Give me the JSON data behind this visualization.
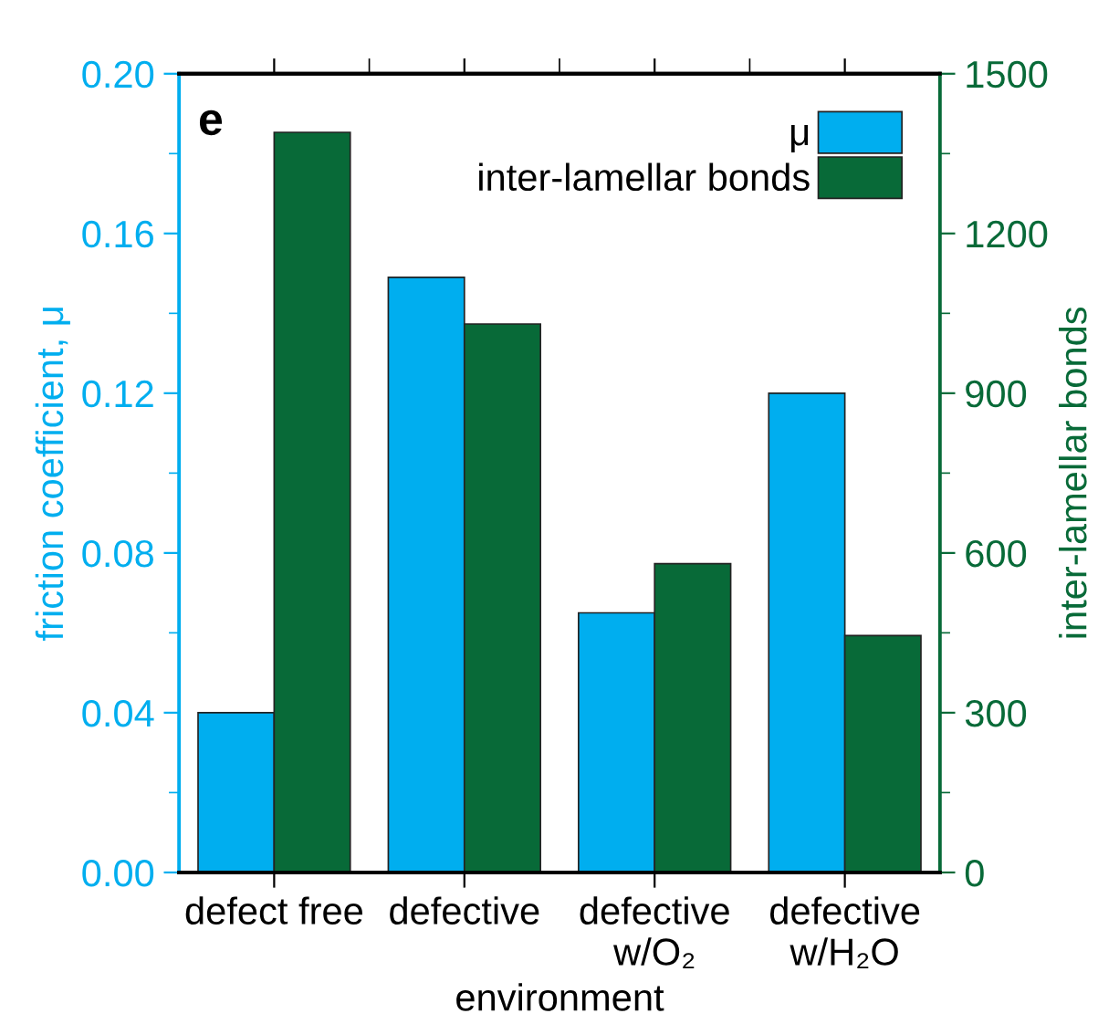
{
  "chart_data": {
    "type": "bar",
    "xlabel": "environment",
    "ylabel": "friction coefficient, μ",
    "y2label": "inter-lamellar bonds",
    "annotations": [
      "e"
    ],
    "categories": [
      "defect free",
      "defective",
      "defective\nw/O₂",
      "defective\nw/H₂O"
    ],
    "series": [
      {
        "name": "μ",
        "color": "#00aeef",
        "values": [
          0.04,
          0.149,
          0.065,
          0.12
        ]
      },
      {
        "name": "inter-lamellar bonds",
        "color": "#086a38",
        "axis": "y2",
        "values": [
          1390,
          1030,
          580,
          445
        ]
      }
    ],
    "ylim": [
      0,
      0.2
    ],
    "yticks": [
      {
        "value": 0,
        "label": "0.00"
      },
      {
        "value": 0.04,
        "label": "0.04"
      },
      {
        "value": 0.08,
        "label": "0.08"
      },
      {
        "value": 0.12,
        "label": "0.12"
      },
      {
        "value": 0.16,
        "label": "0.16"
      },
      {
        "value": 0.2,
        "label": "0.20"
      }
    ],
    "y2lim": [
      0,
      1500
    ],
    "y2ticks": [
      0,
      300,
      600,
      900,
      1200,
      1500
    ],
    "grid": false,
    "legend": "top right"
  }
}
